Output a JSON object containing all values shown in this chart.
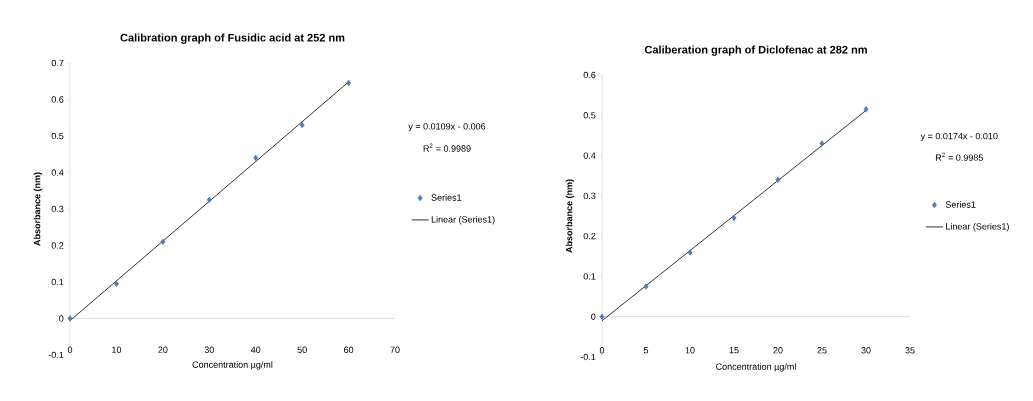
{
  "chart_data": [
    {
      "type": "scatter",
      "title": "Calibration graph of Fusidic acid at 252 nm",
      "xlabel": "Concentration µg/ml",
      "ylabel": "Absorbance (nm)",
      "annotations": [
        "y = 0.0109x - 0.006",
        "R$^{2}$ = 0.9989"
      ],
      "x": [
        0,
        10,
        20,
        30,
        40,
        50,
        60
      ],
      "series": [
        {
          "name": "Series1",
          "type": "scatter",
          "color": "#4a7ebb",
          "marker": "diamond",
          "values": [
            0,
            0.095,
            0.21,
            0.325,
            0.44,
            0.53,
            0.645
          ]
        },
        {
          "name": "Linear (Series1)",
          "type": "line",
          "color": "#000000",
          "x": [
            0,
            60
          ],
          "values": [
            -0.006,
            0.648
          ]
        }
      ],
      "xlim": [
        0,
        70
      ],
      "xticks": [
        0,
        10,
        20,
        30,
        40,
        50,
        60,
        70
      ],
      "ylim": [
        -0.1,
        0.7
      ],
      "yticks": [
        -0.1,
        0,
        0.1,
        0.2,
        0.3,
        0.4,
        0.5,
        0.6,
        0.7
      ],
      "ref_lines": [
        {
          "axis": "y",
          "value": 0,
          "color": "#a6a6a6"
        }
      ],
      "legend": "right"
    },
    {
      "type": "scatter",
      "title": "Caliberation graph of Diclofenac at 282 nm",
      "xlabel": "Concentration µg/ml",
      "ylabel": "Absorbance (nm)",
      "annotations": [
        "y = 0.0174x - 0.010",
        "R$^{2}$ = 0.9985"
      ],
      "x": [
        0,
        5,
        10,
        15,
        20,
        25,
        30
      ],
      "series": [
        {
          "name": "Series1",
          "type": "scatter",
          "color": "#4a7ebb",
          "marker": "diamond",
          "values": [
            0,
            0.075,
            0.16,
            0.245,
            0.34,
            0.43,
            0.515
          ]
        },
        {
          "name": "Linear (Series1)",
          "type": "line",
          "color": "#000000",
          "x": [
            0,
            30
          ],
          "values": [
            -0.01,
            0.512
          ]
        }
      ],
      "xlim": [
        0,
        35
      ],
      "xticks": [
        0,
        5,
        10,
        15,
        20,
        25,
        30,
        35
      ],
      "ylim": [
        -0.1,
        0.6
      ],
      "yticks": [
        -0.1,
        0,
        0.1,
        0.2,
        0.3,
        0.4,
        0.5,
        0.6
      ],
      "ref_lines": [
        {
          "axis": "y",
          "value": 0,
          "color": "#a6a6a6"
        }
      ],
      "legend": "right"
    }
  ]
}
